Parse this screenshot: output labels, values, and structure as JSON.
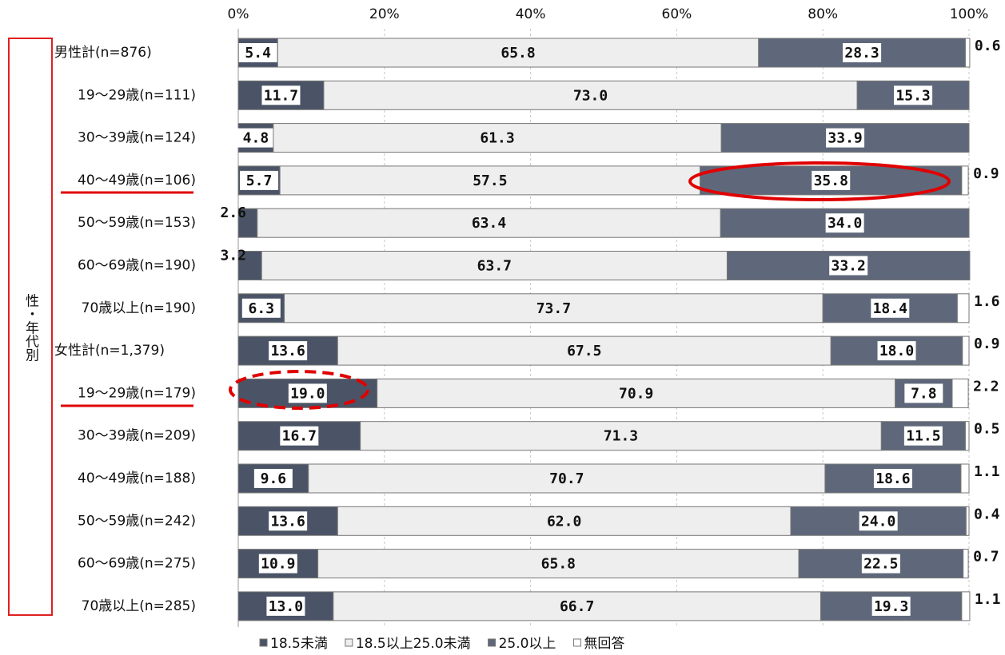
{
  "chart_data": {
    "type": "stacked-bar-horizontal",
    "side_label": "性・年代別",
    "categories": [
      "男性計(n=876)",
      "19～29歳(n=111)",
      "30～39歳(n=124)",
      "40～49歳(n=106)",
      "50～59歳(n=153)",
      "60～69歳(n=190)",
      "70歳以上(n=190)",
      "女性計(n=1,379)",
      "19～29歳(n=179)",
      "30～39歳(n=209)",
      "40～49歳(n=188)",
      "50～59歳(n=242)",
      "60～69歳(n=275)",
      "70歳以上(n=285)"
    ],
    "series": [
      {
        "name": "18.5未満",
        "color": "#4b5466",
        "values": [
          5.4,
          11.7,
          4.8,
          5.7,
          2.6,
          3.2,
          6.3,
          13.6,
          19.0,
          16.7,
          9.6,
          13.6,
          10.9,
          13.0
        ],
        "value_labels": [
          "5.4",
          "11.7",
          "4.8",
          "5.7",
          "2.6",
          "3.2",
          "6.3",
          "13.6",
          "19.0",
          "16.7",
          "9.6",
          "13.6",
          "10.9",
          "13.0"
        ]
      },
      {
        "name": "18.5以上25.0未満",
        "color": "#eeeeee",
        "values": [
          65.8,
          73.0,
          61.3,
          57.5,
          63.4,
          63.7,
          73.7,
          67.5,
          70.9,
          71.3,
          70.7,
          62.0,
          65.8,
          66.7
        ],
        "value_labels": [
          "65.8",
          "73.0",
          "61.3",
          "57.5",
          "63.4",
          "63.7",
          "73.7",
          "67.5",
          "70.9",
          "71.3",
          "70.7",
          "62.0",
          "65.8",
          "66.7"
        ]
      },
      {
        "name": "25.0以上",
        "color": "#5f687a",
        "values": [
          28.3,
          15.3,
          33.9,
          35.8,
          34.0,
          33.2,
          18.4,
          18.0,
          7.8,
          11.5,
          18.6,
          24.0,
          22.5,
          19.3
        ],
        "value_labels": [
          "28.3",
          "15.3",
          "33.9",
          "35.8",
          "34.0",
          "33.2",
          "18.4",
          "18.0",
          "7.8",
          "11.5",
          "18.6",
          "24.0",
          "22.5",
          "19.3"
        ]
      },
      {
        "name": "無回答",
        "color": "#ffffff",
        "values": [
          0.6,
          null,
          null,
          0.9,
          null,
          null,
          1.6,
          0.9,
          2.2,
          0.5,
          1.1,
          0.4,
          0.7,
          1.1
        ],
        "value_labels": [
          "0.6",
          null,
          null,
          "0.9",
          null,
          null,
          "1.6",
          "0.9",
          "2.2",
          "0.5",
          "1.1",
          "0.4",
          "0.7",
          "1.1"
        ]
      }
    ],
    "xlim": [
      0,
      100
    ],
    "xticks": [
      {
        "value": 0,
        "label": "0%"
      },
      {
        "value": 20,
        "label": "20%"
      },
      {
        "value": 40,
        "label": "40%"
      },
      {
        "value": 60,
        "label": "60%"
      },
      {
        "value": 80,
        "label": "80%"
      },
      {
        "value": 100,
        "label": "100%"
      }
    ],
    "grid": true
  }
}
